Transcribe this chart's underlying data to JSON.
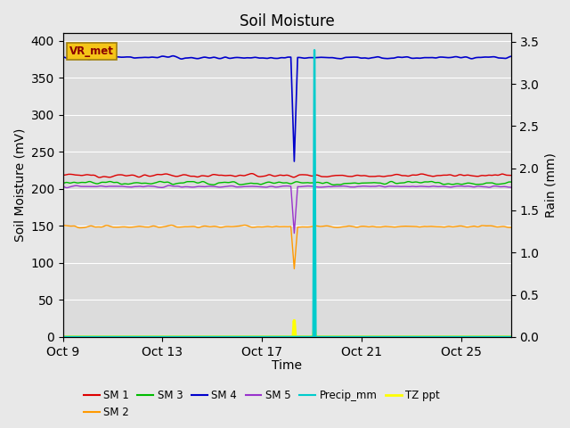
{
  "title": "Soil Moisture",
  "xlabel": "Time",
  "ylabel_left": "Soil Moisture (mV)",
  "ylabel_right": "Rain (mm)",
  "fig_bg_color": "#e8e8e8",
  "plot_bg_color": "#dcdcdc",
  "ylim_left": [
    0,
    410
  ],
  "ylim_right": [
    0,
    3.6
  ],
  "yticks_left": [
    0,
    50,
    100,
    150,
    200,
    250,
    300,
    350,
    400
  ],
  "yticks_right": [
    0.0,
    0.5,
    1.0,
    1.5,
    2.0,
    2.5,
    3.0,
    3.5
  ],
  "xtick_labels": [
    "Oct 9",
    "Oct 13",
    "Oct 17",
    "Oct 21",
    "Oct 25"
  ],
  "xtick_positions": [
    0,
    4,
    8,
    12,
    16
  ],
  "xlim": [
    0,
    18
  ],
  "annotation_label": "VR_met",
  "annotation_color": "#8B0000",
  "annotation_bg": "#f5c518",
  "annotation_edge": "#a08010",
  "sm1_color": "#dd0000",
  "sm2_color": "#ff9900",
  "sm3_color": "#00bb00",
  "sm4_color": "#0000cc",
  "sm5_color": "#9933cc",
  "precip_color": "#00cccc",
  "tzppt_color": "#ffff00",
  "sm1_base": 218,
  "sm2_base": 149,
  "sm3_base": 208,
  "sm4_base": 377,
  "sm5_base": 203,
  "total_days": 18,
  "num_points": 400,
  "sm4_dip_day": 9.3,
  "sm4_dip_value": 237,
  "sm2_dip_day": 9.3,
  "sm2_dip_value": 92,
  "sm5_dip_day": 9.3,
  "sm5_dip_value": 140,
  "precip_spike_day": 10.1,
  "precip_spike_value": 3.4,
  "tzppt_spike1_day": 9.3,
  "tzppt_spike1_value": 22,
  "tzppt_spike2_day": 10.1,
  "tzppt_spike2_value": 15,
  "grid_color": "#ffffff",
  "legend_fontsize": 8.5,
  "title_fontsize": 12
}
